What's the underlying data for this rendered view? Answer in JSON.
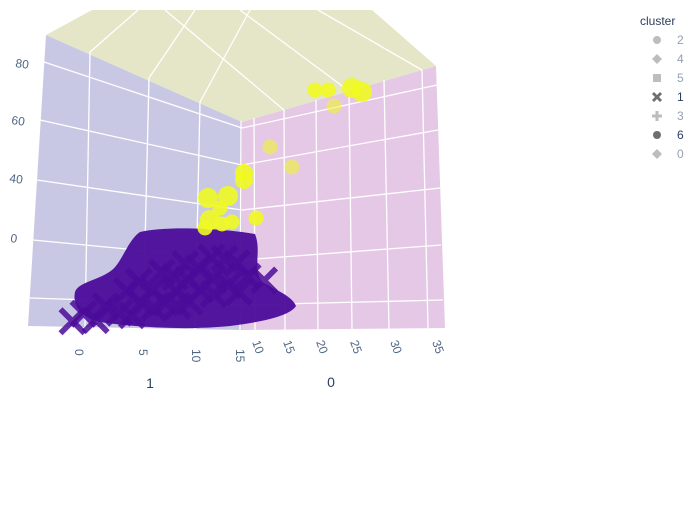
{
  "chart_data": {
    "type": "scatter3d",
    "legend": {
      "title": "cluster",
      "placement": "top-right",
      "entries": [
        {
          "name": "2",
          "symbol": "circle",
          "visible": false
        },
        {
          "name": "4",
          "symbol": "diamond",
          "visible": false
        },
        {
          "name": "5",
          "symbol": "square",
          "visible": false
        },
        {
          "name": "1",
          "symbol": "x",
          "visible": true
        },
        {
          "name": "3",
          "symbol": "cross",
          "visible": false
        },
        {
          "name": "6",
          "symbol": "circle",
          "visible": true
        },
        {
          "name": "0",
          "symbol": "diamond",
          "visible": false
        }
      ]
    },
    "axes": {
      "x": {
        "title": "1",
        "ticks": [
          "0",
          "5",
          "10",
          "15"
        ],
        "range": [
          -3,
          15
        ]
      },
      "y": {
        "title": "0",
        "ticks": [
          "10",
          "15",
          "20",
          "25",
          "30",
          "35"
        ],
        "range": [
          8,
          36
        ]
      },
      "z": {
        "title": "",
        "ticks": [
          "0",
          "40",
          "60",
          "80"
        ],
        "range": [
          -30,
          90
        ]
      }
    },
    "colors": {
      "cluster_1": "#4b0c9a",
      "cluster_6": "#f0f921",
      "wall_left": "#c8c8e5",
      "wall_right": "#e5c8e5",
      "ceiling": "#e5e5c8"
    },
    "series": [
      {
        "name": "6",
        "color": "#f0f921",
        "symbol": "circle",
        "points": [
          {
            "x": 11,
            "y": 21,
            "z": 82
          },
          {
            "x": 11,
            "y": 23,
            "z": 81
          },
          {
            "x": 11,
            "y": 25,
            "z": 82
          },
          {
            "x": 11,
            "y": 26,
            "z": 81
          },
          {
            "x": 11,
            "y": 22,
            "z": 75
          },
          {
            "x": 11,
            "y": 12,
            "z": 58
          },
          {
            "x": 11,
            "y": 15,
            "z": 50
          },
          {
            "x": 11,
            "y": 9,
            "z": 42
          },
          {
            "x": 10,
            "y": 8,
            "z": 40
          },
          {
            "x": 8,
            "y": 8,
            "z": 26
          },
          {
            "x": 10,
            "y": 7,
            "z": 26
          },
          {
            "x": 11,
            "y": 11,
            "z": 18
          },
          {
            "x": 9,
            "y": 7,
            "z": 12
          },
          {
            "x": 11,
            "y": 8,
            "z": 11
          },
          {
            "x": 10,
            "y": 9,
            "z": 11
          },
          {
            "x": 8,
            "y": 8,
            "z": 8
          },
          {
            "x": 12,
            "y": 10,
            "z": 10
          }
        ]
      },
      {
        "name": "1",
        "color": "#4b0c9a",
        "symbol": "x",
        "points": [
          {
            "x": 10,
            "y": 7,
            "z": 0
          },
          {
            "x": 12,
            "y": 9,
            "z": 0
          },
          {
            "x": 8,
            "y": 6,
            "z": -2
          },
          {
            "x": 13,
            "y": 10,
            "z": -3
          },
          {
            "x": 6,
            "y": 5,
            "z": -5
          },
          {
            "x": 11,
            "y": 8,
            "z": -5
          },
          {
            "x": 9,
            "y": 7,
            "z": -8
          },
          {
            "x": 14,
            "y": 11,
            "z": -8
          },
          {
            "x": 5,
            "y": 4,
            "z": -10
          },
          {
            "x": 10,
            "y": 8,
            "z": -12
          },
          {
            "x": 7,
            "y": 6,
            "z": -14
          },
          {
            "x": 12,
            "y": 10,
            "z": -15
          },
          {
            "x": 3,
            "y": 3,
            "z": -18
          },
          {
            "x": 9,
            "y": 7,
            "z": -18
          },
          {
            "x": 15,
            "y": 12,
            "z": -19
          },
          {
            "x": 1,
            "y": 2,
            "z": -20
          },
          {
            "x": 6,
            "y": 5,
            "z": -21
          },
          {
            "x": 11,
            "y": 9,
            "z": -21
          },
          {
            "x": 13,
            "y": 13,
            "z": -22
          },
          {
            "x": 16,
            "y": 16,
            "z": -24
          },
          {
            "x": 0,
            "y": 1,
            "z": -24
          },
          {
            "x": 4,
            "y": 4,
            "z": -25
          },
          {
            "x": 8,
            "y": 7,
            "z": -25
          },
          {
            "x": 12,
            "y": 11,
            "z": -26
          },
          {
            "x": 2,
            "y": 2,
            "z": -27
          },
          {
            "x": 7,
            "y": 6,
            "z": -27
          },
          {
            "x": 10,
            "y": 9,
            "z": -28
          },
          {
            "x": 14,
            "y": 14,
            "z": -28
          },
          {
            "x": 5,
            "y": 5,
            "z": -29
          },
          {
            "x": 9,
            "y": 8,
            "z": -29
          }
        ]
      }
    ]
  }
}
